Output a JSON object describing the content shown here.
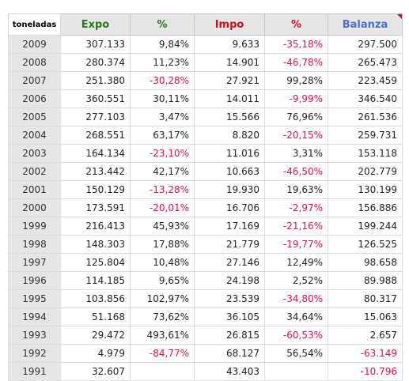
{
  "table": {
    "headers": [
      "toneladas",
      "Expo",
      "%",
      "Impo",
      "%",
      "Balanza"
    ],
    "rows": [
      {
        "year": "2009",
        "expo": "307.133",
        "expo_pct": "9,84%",
        "impo": "9.633",
        "impo_pct": "-35,18%",
        "balanza": "297.500"
      },
      {
        "year": "2008",
        "expo": "280.374",
        "expo_pct": "11,23%",
        "impo": "14.901",
        "impo_pct": "-46,78%",
        "balanza": "265.473"
      },
      {
        "year": "2007",
        "expo": "251.380",
        "expo_pct": "-30,28%",
        "impo": "27.921",
        "impo_pct": "99,28%",
        "balanza": "223.459"
      },
      {
        "year": "2006",
        "expo": "360.551",
        "expo_pct": "30,11%",
        "impo": "14.011",
        "impo_pct": "-9,99%",
        "balanza": "346.540"
      },
      {
        "year": "2005",
        "expo": "277.103",
        "expo_pct": "3,47%",
        "impo": "15.566",
        "impo_pct": "76,96%",
        "balanza": "261.536"
      },
      {
        "year": "2004",
        "expo": "268.551",
        "expo_pct": "63,17%",
        "impo": "8.820",
        "impo_pct": "-20,15%",
        "balanza": "259.731"
      },
      {
        "year": "2003",
        "expo": "164.134",
        "expo_pct": "-23,10%",
        "impo": "11.016",
        "impo_pct": "3,31%",
        "balanza": "153.118"
      },
      {
        "year": "2002",
        "expo": "213.442",
        "expo_pct": "42,17%",
        "impo": "10.663",
        "impo_pct": "-46,50%",
        "balanza": "202.779"
      },
      {
        "year": "2001",
        "expo": "150.129",
        "expo_pct": "-13,28%",
        "impo": "19.930",
        "impo_pct": "19,63%",
        "balanza": "130.199"
      },
      {
        "year": "2000",
        "expo": "173.591",
        "expo_pct": "-20,01%",
        "impo": "16.706",
        "impo_pct": "-2,97%",
        "balanza": "156.886"
      },
      {
        "year": "1999",
        "expo": "216.413",
        "expo_pct": "45,93%",
        "impo": "17.169",
        "impo_pct": "-21,16%",
        "balanza": "199.244"
      },
      {
        "year": "1998",
        "expo": "148.303",
        "expo_pct": "17,88%",
        "impo": "21.779",
        "impo_pct": "-19,77%",
        "balanza": "126.525"
      },
      {
        "year": "1997",
        "expo": "125.804",
        "expo_pct": "10,48%",
        "impo": "27.146",
        "impo_pct": "12,49%",
        "balanza": "98.658"
      },
      {
        "year": "1996",
        "expo": "114.185",
        "expo_pct": "9,65%",
        "impo": "24.198",
        "impo_pct": "2,52%",
        "balanza": "89.988"
      },
      {
        "year": "1995",
        "expo": "103.856",
        "expo_pct": "102,97%",
        "impo": "23.539",
        "impo_pct": "-34,80%",
        "balanza": "80.317"
      },
      {
        "year": "1994",
        "expo": "51.168",
        "expo_pct": "73,62%",
        "impo": "36.105",
        "impo_pct": "34,64%",
        "balanza": "15.063"
      },
      {
        "year": "1993",
        "expo": "29.472",
        "expo_pct": "493,61%",
        "impo": "26.815",
        "impo_pct": "-60,53%",
        "balanza": "2.657"
      },
      {
        "year": "1992",
        "expo": "4.979",
        "expo_pct": "-84,77%",
        "impo": "68.127",
        "impo_pct": "56,54%",
        "balanza": "-63.149"
      },
      {
        "year": "1991",
        "expo": "32.607",
        "expo_pct": "",
        "impo": "43.403",
        "impo_pct": "",
        "balanza": "-10.796"
      }
    ]
  },
  "colors": {
    "expo_header": "#2a7a1a",
    "impo_header": "#d01020",
    "balanza_header": "#4a6fd0",
    "negative_value": "#e0104a",
    "header_bg": "#e6e6e6"
  },
  "icons": {
    "balanza_corner": "red-corner-triangle-icon"
  }
}
